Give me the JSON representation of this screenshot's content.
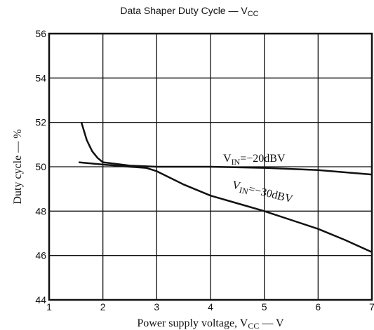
{
  "chart_data": {
    "type": "line",
    "title": {
      "text": "Data Shaper Duty Cycle — V",
      "sub": "CC"
    },
    "xlabel": {
      "text": "Power supply voltage, V",
      "sub": "CC",
      "rest": " — V"
    },
    "ylabel": "Duty cycle — %",
    "xlim": [
      1,
      7
    ],
    "xticks": [
      1,
      2,
      3,
      4,
      5,
      6,
      7
    ],
    "ylim": [
      44,
      56
    ],
    "yticks": [
      44,
      46,
      48,
      50,
      52,
      54,
      56
    ],
    "grid": true,
    "series": [
      {
        "label": {
          "text": "V",
          "sub": "IN",
          "rest": "=−20dBV"
        },
        "color": "#111111",
        "x": [
          1.6,
          1.7,
          1.8,
          1.9,
          2,
          2.5,
          3,
          4,
          5,
          6,
          7
        ],
        "values": [
          52,
          51.2,
          50.7,
          50.4,
          50.2,
          50.05,
          50,
          50,
          49.95,
          49.85,
          49.65
        ]
      },
      {
        "label": {
          "text": "V",
          "sub": "IN",
          "rest": "=−30dBV"
        },
        "color": "#111111",
        "x": [
          1.55,
          2,
          2.5,
          2.8,
          3,
          3.5,
          4,
          4.5,
          5,
          5.5,
          6,
          6.5,
          7
        ],
        "values": [
          50.2,
          50.1,
          50,
          49.95,
          49.8,
          49.2,
          48.7,
          48.35,
          48,
          47.6,
          47.2,
          46.7,
          46.15
        ]
      }
    ]
  }
}
